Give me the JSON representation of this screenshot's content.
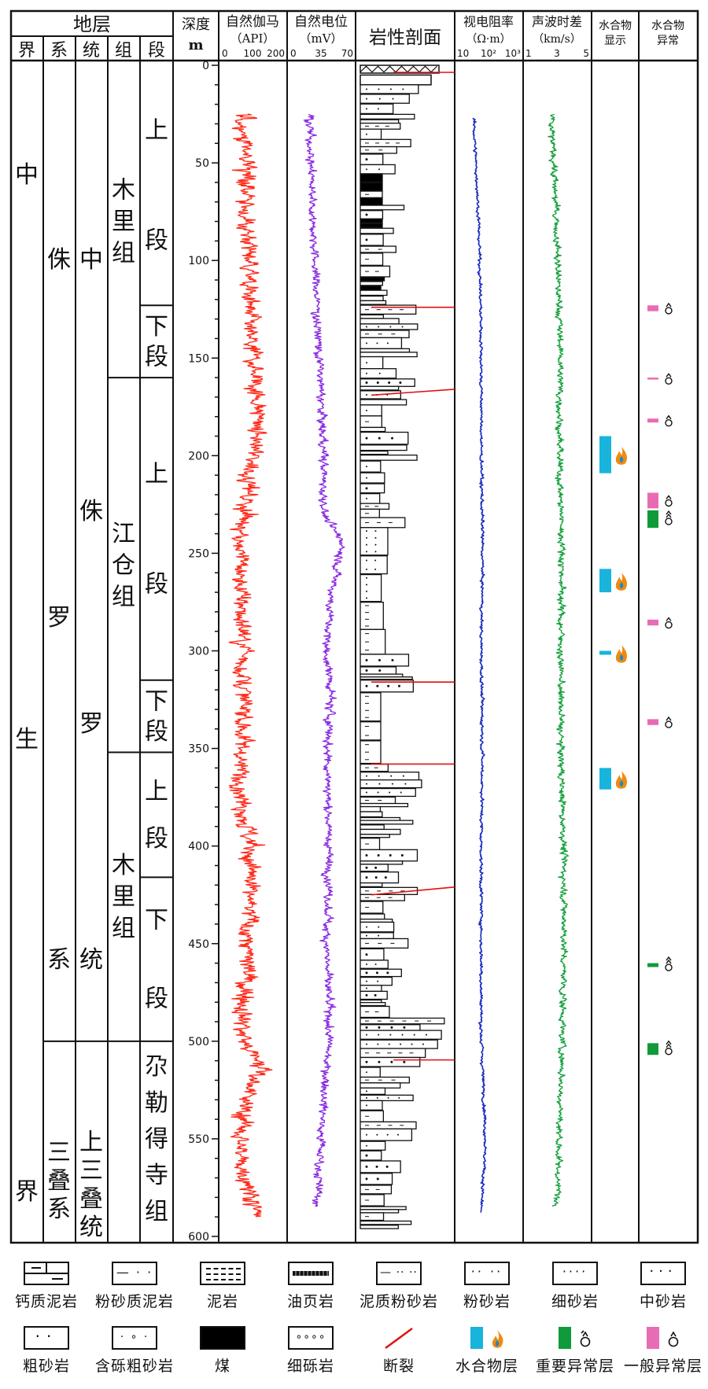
{
  "header": {
    "strata_title": "地层",
    "strata_cols": [
      "界",
      "系",
      "统",
      "组",
      "段"
    ],
    "depth_title": "深度",
    "depth_unit": "m",
    "gamma_title": "自然伽马",
    "gamma_unit": "（API）",
    "sp_title": "自然电位",
    "sp_unit": "（mV）",
    "lith_title": "岩性剖面",
    "res_title": "视电阻率",
    "res_unit": "（Ω·m）",
    "sonic_title": "声波时差",
    "sonic_unit": "（km/s）",
    "hyd_title_1": "水合物",
    "hyd_title_2": "显示",
    "anom_title_1": "水合物",
    "anom_title_2": "异常"
  },
  "strata": {
    "erathem": [
      "中",
      "生",
      "界"
    ],
    "system_jurassic": [
      "侏",
      "罗",
      "系"
    ],
    "system_triassic": "三叠系",
    "series_jurassic": [
      "中",
      "侏",
      "罗",
      "统"
    ],
    "series_triassic": "上三叠统",
    "formations": [
      {
        "name": "木里组",
        "top": 0,
        "bottom": 160
      },
      {
        "name": "江仓组",
        "top": 160,
        "bottom": 352
      },
      {
        "name": "木里组",
        "top": 352,
        "bottom": 500
      }
    ],
    "members": [
      {
        "name": "上段",
        "top": 0,
        "bottom": 123
      },
      {
        "name": "下段",
        "top": 123,
        "bottom": 160
      },
      {
        "name": "上段",
        "top": 160,
        "bottom": 315
      },
      {
        "name": "下段",
        "top": 315,
        "bottom": 352
      },
      {
        "name": "上段",
        "top": 352,
        "bottom": 416
      },
      {
        "name": "下段",
        "top": 416,
        "bottom": 500
      },
      {
        "name": "尕勒得寺组",
        "top": 500,
        "bottom": 600
      }
    ]
  },
  "depth_axis": {
    "min": 0,
    "max": 600,
    "major_ticks": [
      0,
      50,
      100,
      150,
      200,
      250,
      300,
      350,
      400,
      450,
      500,
      550,
      600
    ]
  },
  "chart_data": {
    "type": "line",
    "depth_range": [
      0,
      600
    ],
    "series": [
      {
        "name": "自然伽马",
        "unit": "API",
        "xlim": [
          0,
          200
        ],
        "tick_labels": [
          "0",
          "100",
          "200"
        ],
        "color": "#ff2a1a",
        "profile": [
          [
            25,
            70
          ],
          [
            50,
            85
          ],
          [
            75,
            75
          ],
          [
            100,
            95
          ],
          [
            125,
            85
          ],
          [
            150,
            100
          ],
          [
            175,
            120
          ],
          [
            200,
            100
          ],
          [
            225,
            80
          ],
          [
            250,
            60
          ],
          [
            275,
            65
          ],
          [
            300,
            75
          ],
          [
            325,
            70
          ],
          [
            350,
            70
          ],
          [
            360,
            60
          ],
          [
            380,
            75
          ],
          [
            400,
            90
          ],
          [
            425,
            90
          ],
          [
            450,
            85
          ],
          [
            470,
            80
          ],
          [
            500,
            70
          ],
          [
            515,
            130
          ],
          [
            530,
            75
          ],
          [
            560,
            60
          ],
          [
            590,
            120
          ]
        ]
      },
      {
        "name": "自然电位",
        "unit": "mV",
        "xlim": [
          0,
          70
        ],
        "tick_labels": [
          "0",
          "35",
          "70"
        ],
        "color": "#8a2be2",
        "profile": [
          [
            25,
            22
          ],
          [
            60,
            25
          ],
          [
            100,
            28
          ],
          [
            150,
            33
          ],
          [
            200,
            37
          ],
          [
            230,
            38
          ],
          [
            245,
            58
          ],
          [
            270,
            46
          ],
          [
            300,
            40
          ],
          [
            320,
            45
          ],
          [
            350,
            42
          ],
          [
            400,
            43
          ],
          [
            450,
            41
          ],
          [
            500,
            43
          ],
          [
            550,
            35
          ],
          [
            585,
            30
          ]
        ]
      },
      {
        "name": "视电阻率",
        "unit": "Ω·m",
        "xlim": [
          1,
          1000
        ],
        "tick_labels": [
          "10",
          "10²",
          "10³"
        ],
        "color": "#1a2bbf",
        "profile": [
          [
            25,
            6
          ],
          [
            50,
            8
          ],
          [
            100,
            12
          ],
          [
            150,
            14
          ],
          [
            200,
            14
          ],
          [
            250,
            16
          ],
          [
            300,
            14
          ],
          [
            350,
            16
          ],
          [
            400,
            14
          ],
          [
            450,
            14
          ],
          [
            500,
            14
          ],
          [
            550,
            22
          ],
          [
            585,
            14
          ]
        ]
      },
      {
        "name": "声波时差",
        "unit": "km/s",
        "xlim": [
          1,
          5
        ],
        "tick_labels": [
          "1",
          "3",
          "5"
        ],
        "color": "#14a03c",
        "profile": [
          [
            25,
            2.6
          ],
          [
            50,
            2.8
          ],
          [
            100,
            3.0
          ],
          [
            150,
            3.2
          ],
          [
            200,
            3.1
          ],
          [
            250,
            3.3
          ],
          [
            300,
            3.2
          ],
          [
            350,
            3.2
          ],
          [
            400,
            3.4
          ],
          [
            450,
            3.4
          ],
          [
            500,
            3.3
          ],
          [
            550,
            3.1
          ],
          [
            585,
            3.0
          ]
        ]
      }
    ],
    "faults": [
      {
        "from_depth": 124,
        "to_depth": 124
      },
      {
        "from_depth": 169,
        "to_depth": 166
      },
      {
        "from_depth": 316,
        "to_depth": 316
      },
      {
        "from_depth": 358,
        "to_depth": 358
      },
      {
        "from_depth": 425,
        "to_depth": 421
      }
    ],
    "hydrate_layers": [
      {
        "top": 190,
        "bottom": 209
      },
      {
        "top": 258,
        "bottom": 270
      },
      {
        "top": 300,
        "bottom": 302
      },
      {
        "top": 360,
        "bottom": 371
      }
    ],
    "important_anomalies": [
      {
        "top": 228,
        "bottom": 237
      },
      {
        "top": 460,
        "bottom": 462
      },
      {
        "top": 501,
        "bottom": 507
      }
    ],
    "general_anomalies": [
      {
        "top": 123,
        "bottom": 126
      },
      {
        "top": 160,
        "bottom": 161
      },
      {
        "top": 181,
        "bottom": 183
      },
      {
        "top": 219,
        "bottom": 227
      },
      {
        "top": 284,
        "bottom": 287
      },
      {
        "top": 335,
        "bottom": 338
      }
    ]
  },
  "legend": [
    {
      "key": "calcareous_mudstone",
      "label": "钙质泥岩"
    },
    {
      "key": "silty_mudstone",
      "label": "粉砂质泥岩"
    },
    {
      "key": "mudstone",
      "label": "泥岩"
    },
    {
      "key": "oil_shale",
      "label": "油页岩"
    },
    {
      "key": "muddy_siltstone",
      "label": "泥质粉砂岩"
    },
    {
      "key": "siltstone",
      "label": "粉砂岩"
    },
    {
      "key": "fine_sandstone",
      "label": "细砂岩"
    },
    {
      "key": "medium_sandstone",
      "label": "中砂岩"
    },
    {
      "key": "coarse_sandstone",
      "label": "粗砂岩"
    },
    {
      "key": "pebbly_coarse_sandstone",
      "label": "含砾粗砂岩"
    },
    {
      "key": "coal",
      "label": "煤"
    },
    {
      "key": "fine_conglomerate",
      "label": "细砾岩"
    },
    {
      "key": "fault",
      "label": "断裂"
    },
    {
      "key": "hydrate_layer",
      "label": "水合物层"
    },
    {
      "key": "important_anomaly",
      "label": "重要异常层"
    },
    {
      "key": "general_anomaly",
      "label": "一般异常层"
    }
  ],
  "colors": {
    "gamma": "#ff2a1a",
    "sp": "#8a2be2",
    "resistivity": "#1a2bbf",
    "sonic": "#14a03c",
    "fault": "#e01010",
    "hydrate": "#18b4dc",
    "important_anomaly": "#109a3a",
    "general_anomaly": "#e86cb4",
    "flame": "#f08a10"
  }
}
